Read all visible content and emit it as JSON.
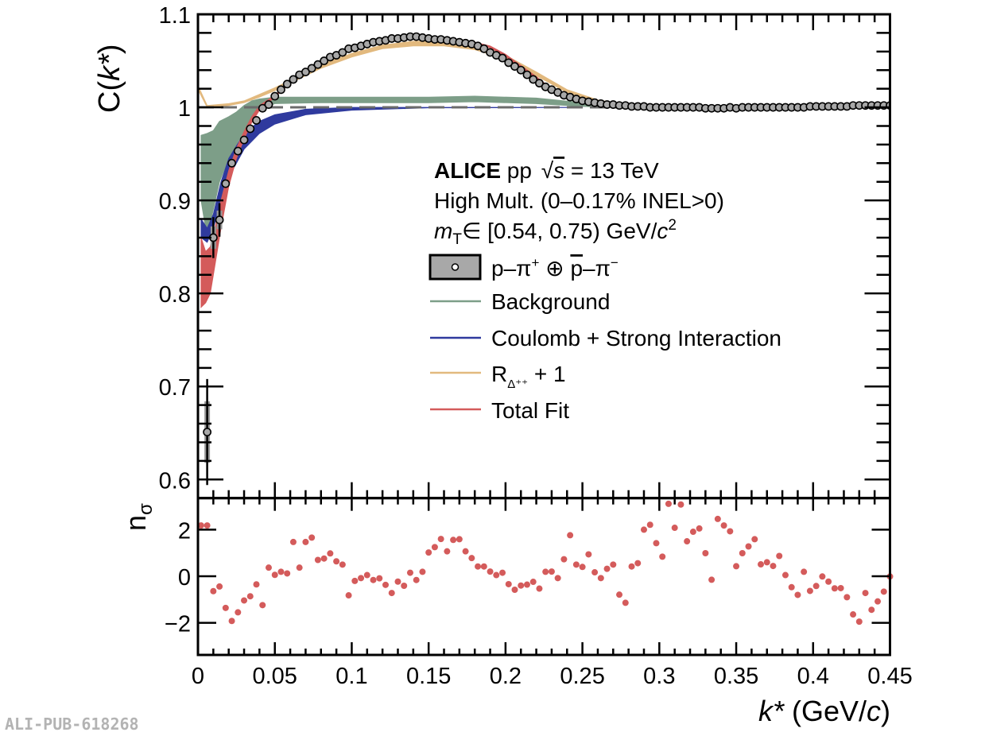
{
  "watermark": "ALI-PUB-618268",
  "colors": {
    "background": "#7d9e88",
    "coulomb": "#2f3a9e",
    "rdelta": "#e2b97e",
    "totalfit": "#d45b5b",
    "data_fill": "#a8a8a8",
    "baseline": "#6b6b6b"
  },
  "header": {
    "experiment": "ALICE",
    "system": " pp ",
    "sqrt_symbol": "√",
    "sqrt_arg": "s",
    "energy": " = 13 TeV",
    "multiplicity": "High Mult. (0–0.17% INEL>0)",
    "mt_symbol": "m",
    "mt_sub": "T",
    "mt_range": "∈ [0.54, 0.75) GeV/",
    "mt_c": "c",
    "mt_sup": "2"
  },
  "legend": {
    "data": {
      "p1": "p–π",
      "sup1": "+",
      "oplus": " ⊕ ",
      "pbar": "p",
      "p2": "–π",
      "sup2": "−"
    },
    "background": "Background",
    "coulomb": "Coulomb + Strong Interaction",
    "rdelta": {
      "R": "R",
      "sub": "Δ⁺⁺",
      "rest": " + 1"
    },
    "totalfit": "Total Fit"
  },
  "chart_data": {
    "type": "scatter",
    "x_axis": {
      "label_var": "k*",
      "label_unit_open": " (GeV/",
      "label_c": "c",
      "label_close": ")",
      "xlim": [
        0,
        0.45
      ],
      "ticks": [
        "0",
        "0.05",
        "0.1",
        "0.15",
        "0.2",
        "0.25",
        "0.3",
        "0.35",
        "0.4",
        "0.45"
      ],
      "tick_values": [
        0,
        0.05,
        0.1,
        0.15,
        0.2,
        0.25,
        0.3,
        0.35,
        0.4,
        0.45
      ]
    },
    "upper": {
      "ylabel_pre": "C(",
      "ylabel_var": "k*",
      "ylabel_post": ")",
      "ylim": [
        0.58,
        1.1
      ],
      "yticks": [
        "0.6",
        "0.7",
        "0.8",
        "0.9",
        "1",
        "1.1"
      ],
      "ytick_values": [
        0.6,
        0.7,
        0.8,
        0.9,
        1.0,
        1.1
      ],
      "baseline": 1.0,
      "data": {
        "name": "p–π⁺ ⊕ p̄–π⁻",
        "k_start": 0.002,
        "k_step": 0.004,
        "C": [
          null,
          0.651,
          0.86,
          0.879,
          0.918,
          0.94,
          0.953,
          0.965,
          0.977,
          0.986,
          0.999,
          1.003,
          1.012,
          1.019,
          1.025,
          1.03,
          1.035,
          1.038,
          1.042,
          1.046,
          1.05,
          1.054,
          1.056,
          1.059,
          1.063,
          1.064,
          1.066,
          1.068,
          1.07,
          1.071,
          1.072,
          1.074,
          1.074,
          1.075,
          1.076,
          1.076,
          1.075,
          1.074,
          1.073,
          1.073,
          1.072,
          1.071,
          1.07,
          1.069,
          1.068,
          1.066,
          1.063,
          1.059,
          1.056,
          1.053,
          1.048,
          1.044,
          1.04,
          1.035,
          1.03,
          1.026,
          1.022,
          1.019,
          1.016,
          1.013,
          1.011,
          1.009,
          1.007,
          1.006,
          1.005,
          1.004,
          1.003,
          1.003,
          1.002,
          1.002,
          1.001,
          1.001,
          1.001,
          1.0,
          1.0,
          1.0,
          1.0,
          1.0,
          1.0,
          1.0,
          1.0,
          1.0,
          0.999,
          0.999,
          0.999,
          0.999,
          1.0,
          0.999,
          1.0,
          1.0,
          1.0,
          1.0,
          1.0,
          1.0,
          1.0,
          1.0,
          1.0,
          1.0,
          1.0,
          1.001,
          1.001,
          1.001,
          1.001,
          1.001,
          1.001,
          1.001,
          1.002,
          1.002,
          1.002,
          1.002,
          1.002,
          1.002,
          1.002
        ],
        "stat_err": {
          "1": 0.057,
          "2": 0.022,
          "3": 0.018
        },
        "syst_err": {
          "1": 0.033,
          "2": 0.012,
          "3": 0.01
        }
      },
      "bands": [
        {
          "name": "Background",
          "color_key": "background",
          "points": [
            [
              0.002,
              0.9,
              0.97
            ],
            [
              0.006,
              0.86,
              0.972
            ],
            [
              0.01,
              0.89,
              0.975
            ],
            [
              0.014,
              0.92,
              0.985
            ],
            [
              0.02,
              0.945,
              0.99
            ],
            [
              0.025,
              0.96,
              0.995
            ],
            [
              0.03,
              0.975,
              1.002
            ],
            [
              0.035,
              0.99,
              1.007
            ],
            [
              0.04,
              0.998,
              1.009
            ],
            [
              0.05,
              1.004,
              1.011
            ],
            [
              0.08,
              1.005,
              1.011
            ],
            [
              0.15,
              1.005,
              1.011
            ],
            [
              0.18,
              1.006,
              1.012
            ],
            [
              0.22,
              1.004,
              1.01
            ],
            [
              0.25,
              1.001,
              1.005
            ],
            [
              0.27,
              1.0,
              1.002
            ],
            [
              0.28,
              1.0,
              1.0005
            ]
          ]
        },
        {
          "name": "Coulomb + Strong Interaction",
          "color_key": "coulomb",
          "points": [
            [
              0.002,
              0.86,
              0.88
            ],
            [
              0.006,
              0.855,
              0.87
            ],
            [
              0.01,
              0.87,
              0.885
            ],
            [
              0.015,
              0.9,
              0.92
            ],
            [
              0.02,
              0.925,
              0.945
            ],
            [
              0.03,
              0.955,
              0.972
            ],
            [
              0.04,
              0.972,
              0.985
            ],
            [
              0.05,
              0.982,
              0.992
            ],
            [
              0.07,
              0.992,
              0.998
            ],
            [
              0.1,
              0.997,
              1.0
            ],
            [
              0.15,
              0.9995,
              1.0
            ],
            [
              0.25,
              0.9998,
              1.0
            ]
          ]
        },
        {
          "name": "R_Δ++ + 1",
          "color_key": "rdelta",
          "points": [
            [
              0.001,
              1.016,
              1.02
            ],
            [
              0.006,
              1.0,
              1.002
            ],
            [
              0.02,
              1.002,
              1.004
            ],
            [
              0.03,
              1.005,
              1.007
            ],
            [
              0.04,
              1.011,
              1.014
            ],
            [
              0.05,
              1.018,
              1.021
            ],
            [
              0.06,
              1.026,
              1.029
            ],
            [
              0.08,
              1.042,
              1.046
            ],
            [
              0.1,
              1.054,
              1.058
            ],
            [
              0.12,
              1.063,
              1.067
            ],
            [
              0.14,
              1.066,
              1.071
            ],
            [
              0.16,
              1.066,
              1.071
            ],
            [
              0.18,
              1.062,
              1.067
            ],
            [
              0.2,
              1.052,
              1.056
            ],
            [
              0.22,
              1.034,
              1.038
            ],
            [
              0.24,
              1.016,
              1.019
            ],
            [
              0.26,
              1.006,
              1.008
            ],
            [
              0.28,
              1.001,
              1.002
            ],
            [
              0.3,
              1.0,
              1.0005
            ]
          ]
        },
        {
          "name": "Total Fit",
          "color_key": "totalfit",
          "points": [
            [
              0.002,
              0.785,
              0.86
            ],
            [
              0.005,
              0.79,
              0.845
            ],
            [
              0.008,
              0.8,
              0.85
            ],
            [
              0.011,
              0.83,
              0.87
            ],
            [
              0.015,
              0.87,
              0.9
            ],
            [
              0.02,
              0.915,
              0.932
            ],
            [
              0.025,
              0.945,
              0.956
            ],
            [
              0.03,
              0.966,
              0.974
            ],
            [
              0.035,
              0.984,
              0.99
            ],
            [
              0.04,
              0.997,
              1.002
            ],
            [
              0.05,
              1.011,
              1.013
            ],
            [
              0.06,
              1.026,
              1.028
            ],
            [
              0.07,
              1.037,
              1.039
            ],
            [
              0.08,
              1.047,
              1.049
            ],
            [
              0.09,
              1.055,
              1.057
            ],
            [
              0.1,
              1.062,
              1.064
            ],
            [
              0.11,
              1.067,
              1.069
            ],
            [
              0.12,
              1.07,
              1.072
            ],
            [
              0.13,
              1.072,
              1.074
            ],
            [
              0.14,
              1.074,
              1.076
            ],
            [
              0.15,
              1.074,
              1.076
            ],
            [
              0.16,
              1.072,
              1.074
            ],
            [
              0.17,
              1.07,
              1.072
            ],
            [
              0.18,
              1.068,
              1.07
            ],
            [
              0.19,
              1.064,
              1.066
            ],
            [
              0.2,
              1.055,
              1.057
            ],
            [
              0.21,
              1.043,
              1.045
            ],
            [
              0.22,
              1.031,
              1.033
            ],
            [
              0.23,
              1.018,
              1.02
            ],
            [
              0.24,
              1.01,
              1.012
            ],
            [
              0.25,
              1.006,
              1.008
            ],
            [
              0.26,
              1.004,
              1.005
            ],
            [
              0.28,
              1.001,
              1.002
            ],
            [
              0.3,
              1.0,
              1.001
            ],
            [
              0.45,
              1.001,
              1.002
            ]
          ]
        }
      ]
    },
    "lower": {
      "ylabel": "n",
      "ylabel_sub": "σ",
      "ylim": [
        -3.4,
        3.4
      ],
      "yticks": [
        "−2",
        "0",
        "2"
      ],
      "ytick_values": [
        -2,
        0,
        2
      ],
      "k_start": 0.002,
      "k_step": 0.004,
      "n_sigma": [
        2.18,
        2.18,
        -0.64,
        -0.44,
        -1.36,
        -1.92,
        -1.55,
        -1.04,
        -0.86,
        -0.35,
        -1.24,
        0.37,
        0.06,
        0.19,
        0.12,
        1.47,
        0.37,
        1.47,
        1.66,
        0.7,
        0.76,
        0.98,
        0.64,
        0.5,
        -0.82,
        -0.2,
        -0.08,
        0.05,
        -0.16,
        -0.09,
        -0.37,
        -0.72,
        -0.23,
        -0.41,
        0.15,
        -0.16,
        0.19,
        1.02,
        1.25,
        1.6,
        1.07,
        1.56,
        1.59,
        1.07,
        0.78,
        0.42,
        0.42,
        0.2,
        0.05,
        0.15,
        -0.34,
        -0.58,
        -0.4,
        -0.36,
        -0.24,
        -0.53,
        0.19,
        0.2,
        -0.08,
        0.73,
        1.76,
        0.5,
        0.4,
        0.94,
        0.17,
        -0.08,
        0.32,
        0.5,
        -0.79,
        -1.14,
        0.42,
        0.56,
        2.0,
        2.21,
        1.42,
        0.84,
        3.11,
        2.08,
        3.08,
        1.5,
        1.91,
        2.05,
        0.99,
        -0.15,
        2.46,
        2.18,
        1.93,
        0.43,
        0.99,
        1.28,
        1.59,
        0.51,
        0.6,
        0.44,
        0.87,
        0.05,
        -0.47,
        -0.8,
        0.19,
        -0.63,
        -0.42,
        -0.01,
        -0.23,
        -0.52,
        -0.51,
        -0.9,
        -1.64,
        -1.95,
        -0.72,
        -1.44,
        -1.08,
        -0.66,
        -0.01
      ]
    }
  }
}
